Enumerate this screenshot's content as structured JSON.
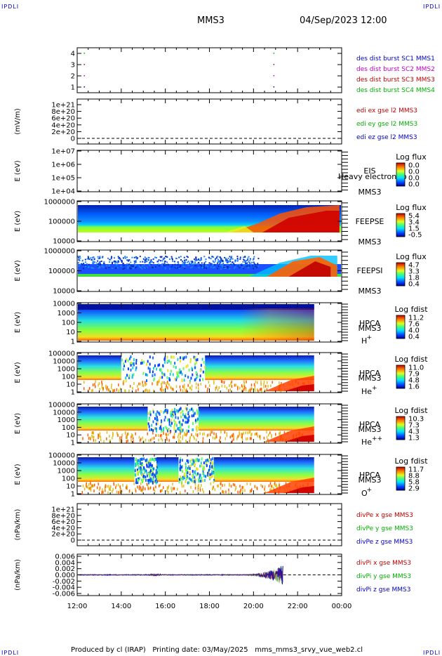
{
  "corners": {
    "tl": "IPDLI",
    "tr": "IPDLI",
    "bl": "IPDLI",
    "br": "IPDLI"
  },
  "header": {
    "spacecraft": "MMS3",
    "datetime": "04/Sep/2023 12:00"
  },
  "footer": {
    "text": "Produced by cl (IRAP)   Printing date: 03/May/2025   mms_mms3_srvy_vue_web2.cl"
  },
  "time_axis": {
    "labels": [
      "12:00",
      "14:00",
      "16:00",
      "18:00",
      "20:00",
      "22:00",
      "00:00"
    ]
  },
  "colors": {
    "mms1": "#0000c0",
    "mms2": "#c000c0",
    "mms3": "#c00000",
    "mms4": "#00b000",
    "x": "#c00000",
    "y": "#00b000",
    "z": "#0000c0"
  },
  "chart_data": [
    {
      "type": "scatter",
      "id": "burst",
      "yticks": [
        "1",
        "2",
        "3",
        "4"
      ],
      "legend": [
        "des dist burst SC1 MMS1",
        "des dist burst SC2 MMS2",
        "des dist burst SC3 MMS3",
        "des dist burst SC4 MMS4"
      ],
      "series": [
        {
          "name": "SC1",
          "y": 1,
          "x_hours": [
            12.3,
            20.9
          ]
        },
        {
          "name": "SC2",
          "y": 2,
          "x_hours": [
            12.3,
            20.9
          ]
        },
        {
          "name": "SC3",
          "y": 3,
          "x_hours": [
            12.3,
            20.9
          ]
        },
        {
          "name": "SC4",
          "y": 4,
          "x_hours": [
            12.3,
            20.9
          ]
        }
      ]
    },
    {
      "type": "line",
      "id": "edi",
      "ylabel": "(mV/m)",
      "yticks": [
        "1e+21",
        "8e+20",
        "6e+20",
        "4e+20",
        "2e+20",
        "0"
      ],
      "legend": [
        "edi ex gse l2 MMS3",
        "edi ey gse l2 MMS3",
        "edi ez gse l2 MMS3"
      ]
    },
    {
      "type": "heatmap",
      "id": "eis",
      "ylabel": "E (eV)",
      "yticks": [
        "1e+07",
        "1e+06",
        "1e+05",
        "1e+04"
      ],
      "labels": [
        "EIS",
        "MMS3"
      ],
      "overlay": "Heavy electron to",
      "cbar": {
        "title": "Log flux",
        "ticks": [
          "0.0",
          "0.0",
          "0.0",
          "0.0"
        ]
      }
    },
    {
      "type": "heatmap",
      "id": "feepse",
      "ylabel": "E (eV)",
      "yticks": [
        "1000000",
        "100000",
        "10000"
      ],
      "labels": [
        "FEEPSE",
        "MMS3"
      ],
      "cbar": {
        "title": "Log flux",
        "ticks": [
          "5.4",
          "3.4",
          "1.5",
          "-0.5"
        ]
      }
    },
    {
      "type": "heatmap",
      "id": "feepsi",
      "ylabel": "E (eV)",
      "yticks": [
        "1000000",
        "100000",
        "10000"
      ],
      "labels": [
        "FEEPSI",
        "MMS3"
      ],
      "cbar": {
        "title": "Log flux",
        "ticks": [
          "4.7",
          "3.3",
          "1.8",
          "0.4"
        ]
      }
    },
    {
      "type": "heatmap",
      "id": "hpca-h",
      "ylabel": "E (eV)",
      "yticks": [
        "10000",
        "1000",
        "100",
        "10",
        "1"
      ],
      "labels": [
        "HPCA",
        "MMS3"
      ],
      "species": "H",
      "species_sup": "+",
      "cbar": {
        "title": "Log fdist",
        "ticks": [
          "11.2",
          "7.6",
          "4.0",
          "0.4"
        ]
      }
    },
    {
      "type": "heatmap",
      "id": "hpca-he",
      "ylabel": "E (eV)",
      "yticks": [
        "100000",
        "10000",
        "1000",
        "100",
        "10",
        "1"
      ],
      "labels": [
        "HPCA",
        "MMS3"
      ],
      "species": "He",
      "species_sup": "+",
      "cbar": {
        "title": "Log fdist",
        "ticks": [
          "11.0",
          "7.9",
          "4.8",
          "1.6"
        ]
      }
    },
    {
      "type": "heatmap",
      "id": "hpca-hepp",
      "ylabel": "E (eV)",
      "yticks": [
        "100000",
        "10000",
        "1000",
        "100",
        "10",
        "1"
      ],
      "labels": [
        "HPCA",
        "MMS3"
      ],
      "species": "He",
      "species_sup": "++",
      "cbar": {
        "title": "Log fdist",
        "ticks": [
          "10.3",
          "7.3",
          "4.3",
          "1.3"
        ]
      }
    },
    {
      "type": "heatmap",
      "id": "hpca-o",
      "ylabel": "E (eV)",
      "yticks": [
        "100000",
        "10000",
        "1000",
        "100",
        "10",
        "1"
      ],
      "labels": [
        "HPCA",
        "MMS3"
      ],
      "species": "O",
      "species_sup": "+",
      "cbar": {
        "title": "Log fdist",
        "ticks": [
          "11.7",
          "8.8",
          "5.8",
          "2.9"
        ]
      }
    },
    {
      "type": "line",
      "id": "divpe",
      "ylabel": "(nPa/km)",
      "yticks": [
        "1e+21",
        "8e+20",
        "6e+20",
        "4e+20",
        "2e+20",
        "0"
      ],
      "legend": [
        "divPe x gse MMS3",
        "divPe y gse MMS3",
        "divPe z gse MMS3"
      ]
    },
    {
      "type": "line",
      "id": "divpi",
      "ylabel": "(nPa/km)",
      "yticks": [
        "0.006",
        "0.004",
        "0.002",
        "0.000",
        "-0.002",
        "-0.004",
        "-0.006"
      ],
      "ylim": [
        -0.006,
        0.006
      ],
      "legend": [
        "divPi x gse MMS3",
        "divPi y gse MMS3",
        "divPi z gse MMS3"
      ]
    }
  ]
}
